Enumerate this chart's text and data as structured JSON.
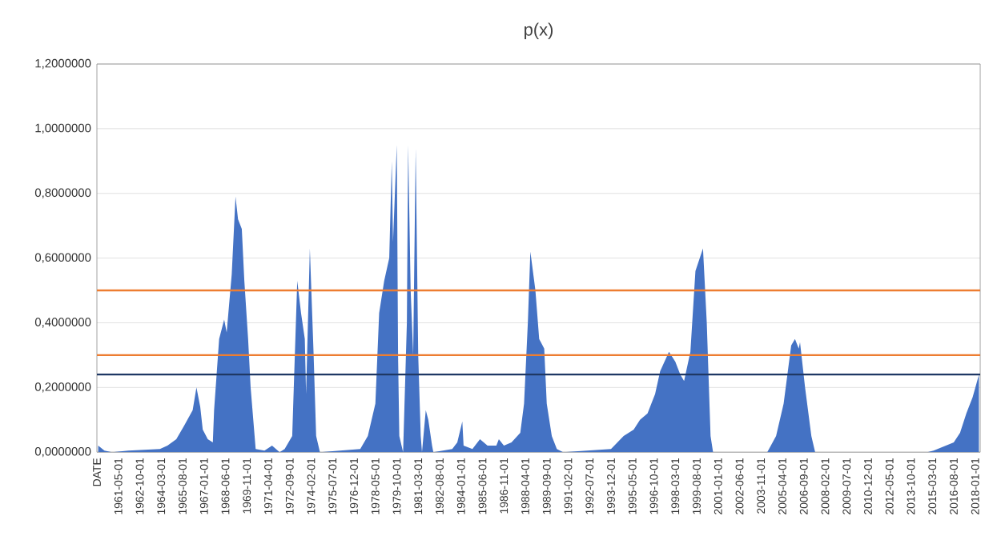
{
  "chart_data": {
    "type": "area",
    "title": "p(x)",
    "x": [
      "1960-01",
      "1960-06",
      "1960-12",
      "1962-01",
      "1964-02",
      "1964-08",
      "1965-03",
      "1965-09",
      "1966-04",
      "1966-07",
      "1966-10",
      "1966-12",
      "1967-04",
      "1967-08",
      "1967-09",
      "1968-01",
      "1968-05",
      "1968-07",
      "1968-11",
      "1969-02",
      "1969-04",
      "1969-07",
      "1969-09",
      "1969-12",
      "1970-02",
      "1970-06",
      "1971-01",
      "1971-07",
      "1972-01",
      "1972-05",
      "1972-11",
      "1973-03",
      "1973-06",
      "1973-09",
      "1973-10",
      "1974-01",
      "1974-04",
      "1974-06",
      "1974-09",
      "1977-05",
      "1977-11",
      "1978-05",
      "1978-08",
      "1978-12",
      "1979-04",
      "1979-06",
      "1979-07",
      "1979-10",
      "1979-11",
      "1979-12",
      "1980-03",
      "1980-06",
      "1980-07",
      "1980-09",
      "1980-11",
      "1981-01",
      "1981-03",
      "1981-05",
      "1981-06",
      "1981-09",
      "1981-11",
      "1982-02",
      "1982-03",
      "1983-06",
      "1983-10",
      "1984-02",
      "1984-03",
      "1984-10",
      "1985-04",
      "1985-10",
      "1986-05",
      "1986-07",
      "1986-11",
      "1987-05",
      "1987-12",
      "1988-03",
      "1988-06",
      "1988-08",
      "1988-12",
      "1989-03",
      "1989-07",
      "1989-09",
      "1990-01",
      "1990-05",
      "1990-10",
      "1993-12",
      "1994-05",
      "1994-10",
      "1995-06",
      "1995-11",
      "1996-05",
      "1996-11",
      "1997-03",
      "1997-10",
      "1998-03",
      "1998-07",
      "1998-10",
      "1999-03",
      "1999-07",
      "2000-01",
      "2000-04",
      "2000-07",
      "2000-09",
      "2004-04",
      "2004-11",
      "2005-05",
      "2005-11",
      "2006-02",
      "2006-05",
      "2006-06",
      "2006-10",
      "2007-03",
      "2007-06",
      "2014-11",
      "2015-04",
      "2016-08",
      "2017-01",
      "2017-06",
      "2017-11",
      "2018-04"
    ],
    "values": [
      0.02,
      0.005,
      0,
      0.005,
      0.01,
      0.02,
      0.04,
      0.08,
      0.13,
      0.2,
      0.14,
      0.07,
      0.04,
      0.03,
      0.13,
      0.35,
      0.41,
      0.37,
      0.55,
      0.79,
      0.72,
      0.69,
      0.53,
      0.35,
      0.2,
      0.01,
      0.005,
      0.02,
      0,
      0.01,
      0.05,
      0.53,
      0.43,
      0.35,
      0.18,
      0.63,
      0.3,
      0.05,
      0,
      0.01,
      0.05,
      0.15,
      0.43,
      0.53,
      0.6,
      0.9,
      0.65,
      0.95,
      0.3,
      0.05,
      0,
      0.4,
      0.95,
      0.5,
      0.3,
      0.94,
      0.3,
      0.05,
      0,
      0.13,
      0.1,
      0.02,
      0,
      0.01,
      0.03,
      0.095,
      0.02,
      0.01,
      0.04,
      0.02,
      0.02,
      0.04,
      0.02,
      0.03,
      0.06,
      0.15,
      0.4,
      0.62,
      0.5,
      0.35,
      0.32,
      0.15,
      0.05,
      0.01,
      0,
      0.01,
      0.03,
      0.05,
      0.07,
      0.1,
      0.12,
      0.18,
      0.25,
      0.31,
      0.28,
      0.24,
      0.22,
      0.31,
      0.56,
      0.63,
      0.4,
      0.05,
      0,
      0,
      0.05,
      0.15,
      0.33,
      0.35,
      0.32,
      0.34,
      0.2,
      0.05,
      0,
      0,
      0.005,
      0.03,
      0.06,
      0.12,
      0.17,
      0.24
    ],
    "color": "#4472c4",
    "xlim": [
      "1959-12-01",
      "2018-05-01"
    ],
    "xticks": [
      {
        "value": "1959-12-01",
        "label": "DATE"
      },
      "1961-05-01",
      "1962-10-01",
      "1964-03-01",
      "1965-08-01",
      "1967-01-01",
      "1968-06-01",
      "1969-11-01",
      "1971-04-01",
      "1972-09-01",
      "1974-02-01",
      "1975-07-01",
      "1976-12-01",
      "1978-05-01",
      "1979-10-01",
      "1981-03-01",
      "1982-08-01",
      "1984-01-01",
      "1985-06-01",
      "1986-11-01",
      "1988-04-01",
      "1989-09-01",
      "1991-02-01",
      "1992-07-01",
      "1993-12-01",
      "1995-05-01",
      "1996-10-01",
      "1998-03-01",
      "1999-08-01",
      "2001-01-01",
      "2002-06-01",
      "2003-11-01",
      "2005-04-01",
      "2006-09-01",
      "2008-02-01",
      "2009-07-01",
      "2010-12-01",
      "2012-05-01",
      "2013-10-01",
      "2015-03-01",
      "2016-08-01",
      "2018-01-01"
    ],
    "ylim": [
      0,
      1.2
    ],
    "yticks": [
      {
        "value": 0,
        "label": "0,0000000"
      },
      {
        "value": 0.2,
        "label": "0,2000000"
      },
      {
        "value": 0.4,
        "label": "0,4000000"
      },
      {
        "value": 0.6,
        "label": "0,6000000"
      },
      {
        "value": 0.8,
        "label": "0,8000000"
      },
      {
        "value": 1.0,
        "label": "1,0000000"
      },
      {
        "value": 1.2,
        "label": "1,2000000"
      }
    ],
    "grid": "y",
    "ref_lines": [
      {
        "axis": "y",
        "value": 0.5,
        "color": "#ed7d31"
      },
      {
        "axis": "y",
        "value": 0.3,
        "color": "#ed7d31"
      },
      {
        "axis": "y",
        "value": 0.24,
        "color": "#1f3864"
      }
    ]
  }
}
